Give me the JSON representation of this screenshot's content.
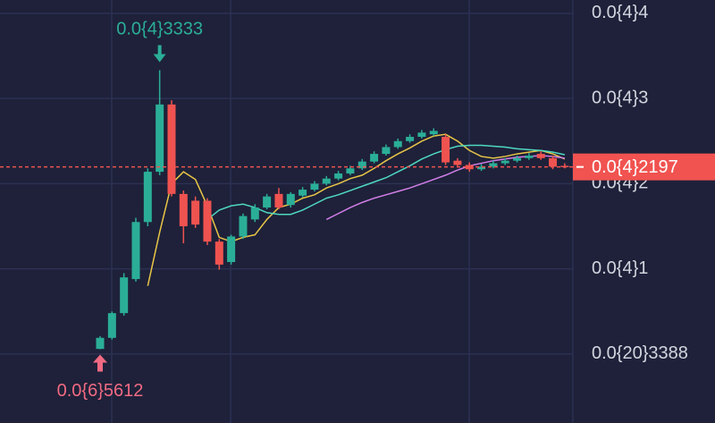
{
  "chart_data": {
    "type": "candlestick",
    "ylim": [
      -8.1e-06,
      4.157e-05
    ],
    "yticks": [
      {
        "value": 4e-05,
        "label": "0.0{4}4"
      },
      {
        "value": 3e-05,
        "label": "0.0{4}3"
      },
      {
        "value": 2e-05,
        "label": "0.0{4}2"
      },
      {
        "value": 1e-05,
        "label": "0.0{4}1"
      },
      {
        "value": 3.388e-21,
        "label": "0.0{20}3388"
      }
    ],
    "grid": true,
    "up_color": "#2bae98",
    "down_color": "#ef5350",
    "open": [
      6e-07,
      1.9e-06,
      4.8e-06,
      8.8e-06,
      1.55e-05,
      2.14e-05,
      2.93e-05,
      1.88e-05,
      1.8e-05,
      1.8e-05,
      1.32e-05,
      1.08e-05,
      1.38e-05,
      1.58e-05,
      1.72e-05,
      1.88e-05,
      1.75e-05,
      1.86e-05,
      1.93e-05,
      2e-05,
      2.06e-05,
      2.12e-05,
      2.18e-05,
      2.26e-05,
      2.35e-05,
      2.43e-05,
      2.5e-05,
      2.55e-05,
      2.58e-05,
      2.55e-05,
      2.27e-05,
      2.22e-05,
      2.17e-05,
      2.2e-05,
      2.24e-05,
      2.27e-05,
      2.3e-05,
      2.35e-05,
      2.3e-05,
      2.21e-05
    ],
    "high": [
      2.1e-06,
      5e-06,
      9.5e-06,
      1.6e-05,
      2.18e-05,
      3.333e-05,
      2.98e-05,
      1.92e-05,
      1.85e-05,
      1.83e-05,
      1.35e-05,
      1.4e-05,
      1.65e-05,
      1.76e-05,
      1.88e-05,
      1.95e-05,
      1.9e-05,
      1.96e-05,
      2.03e-05,
      2.09e-05,
      2.15e-05,
      2.21e-05,
      2.29e-05,
      2.38e-05,
      2.46e-05,
      2.53e-05,
      2.58e-05,
      2.63e-05,
      2.65e-05,
      2.58e-05,
      2.3e-05,
      2.25e-05,
      2.23e-05,
      2.27e-05,
      2.3e-05,
      2.33e-05,
      2.36e-05,
      2.38e-05,
      2.33e-05,
      2.24e-05
    ],
    "low": [
      5.612e-07,
      1.7e-06,
      4.5e-06,
      8.5e-06,
      1.5e-05,
      2.1e-05,
      1.85e-05,
      1.3e-05,
      1.48e-05,
      1.28e-05,
      9.9e-06,
      1.05e-05,
      1.35e-05,
      1.55e-05,
      1.7e-05,
      1.7e-05,
      1.72e-05,
      1.84e-05,
      1.91e-05,
      1.98e-05,
      2.04e-05,
      2.1e-05,
      2.16e-05,
      2.24e-05,
      2.33e-05,
      2.41e-05,
      2.48e-05,
      2.53e-05,
      2.56e-05,
      2.22e-05,
      2.19e-05,
      2.14e-05,
      2.15e-05,
      2.18e-05,
      2.22e-05,
      2.25e-05,
      2.28e-05,
      2.28e-05,
      2.17e-05,
      2.18e-05
    ],
    "close": [
      1.9e-06,
      4.8e-06,
      9e-06,
      1.55e-05,
      2.14e-05,
      2.93e-05,
      1.88e-05,
      1.5e-05,
      1.52e-05,
      1.32e-05,
      1.05e-05,
      1.38e-05,
      1.62e-05,
      1.72e-05,
      1.85e-05,
      1.72e-05,
      1.88e-05,
      1.93e-05,
      2e-05,
      2.06e-05,
      2.12e-05,
      2.18e-05,
      2.26e-05,
      2.35e-05,
      2.43e-05,
      2.5e-05,
      2.55e-05,
      2.6e-05,
      2.62e-05,
      2.25e-05,
      2.22e-05,
      2.17e-05,
      2.2e-05,
      2.24e-05,
      2.27e-05,
      2.3e-05,
      2.33e-05,
      2.3e-05,
      2.2e-05,
      2.197e-05
    ],
    "series": [
      {
        "color": "#e8c547",
        "values": [
          null,
          null,
          null,
          null,
          8e-06,
          1.43e-05,
          2e-05,
          2.14e-05,
          2.05e-05,
          1.74e-05,
          1.37e-05,
          1.32e-05,
          1.37e-05,
          1.4e-05,
          1.58e-05,
          1.72e-05,
          1.76e-05,
          1.83e-05,
          1.87e-05,
          1.95e-05,
          2e-05,
          2.06e-05,
          2.1e-05,
          2.18e-05,
          2.27e-05,
          2.35e-05,
          2.42e-05,
          2.5e-05,
          2.56e-05,
          2.58e-05,
          2.5e-05,
          2.39e-05,
          2.32e-05,
          2.3e-05,
          2.32e-05,
          2.35e-05,
          2.37e-05,
          2.39e-05,
          2.35e-05,
          2.29e-05
        ]
      },
      {
        "color": "#4fd8c0",
        "values": [
          null,
          null,
          null,
          null,
          null,
          null,
          null,
          null,
          null,
          1.58e-05,
          1.69e-05,
          1.74e-05,
          1.76e-05,
          1.72e-05,
          1.66e-05,
          1.64e-05,
          1.64e-05,
          1.69e-05,
          1.76e-05,
          1.83e-05,
          1.87e-05,
          1.92e-05,
          1.97e-05,
          2.02e-05,
          2.07e-05,
          2.14e-05,
          2.21e-05,
          2.29e-05,
          2.35e-05,
          2.4e-05,
          2.44e-05,
          2.45e-05,
          2.45e-05,
          2.44e-05,
          2.43e-05,
          2.41e-05,
          2.4e-05,
          2.39e-05,
          2.37e-05,
          2.34e-05
        ]
      },
      {
        "color": "#d37ee8",
        "values": [
          null,
          null,
          null,
          null,
          null,
          null,
          null,
          null,
          null,
          null,
          null,
          null,
          null,
          null,
          null,
          null,
          null,
          null,
          null,
          1.58e-05,
          1.65e-05,
          1.72e-05,
          1.78e-05,
          1.83e-05,
          1.87e-05,
          1.91e-05,
          1.95e-05,
          2e-05,
          2.05e-05,
          2.1e-05,
          2.16e-05,
          2.21e-05,
          2.24e-05,
          2.27e-05,
          2.29e-05,
          2.31e-05,
          2.32e-05,
          2.33e-05,
          2.32e-05,
          2.3e-05
        ]
      }
    ],
    "high_annotation": {
      "value": 3.333e-05,
      "label": "0.0{4}3333"
    },
    "low_annotation": {
      "value": 5.612e-07,
      "label": "0.0{6}5612"
    },
    "current_price": {
      "value": 2.197e-05,
      "label": "0.0{4}2197"
    }
  }
}
